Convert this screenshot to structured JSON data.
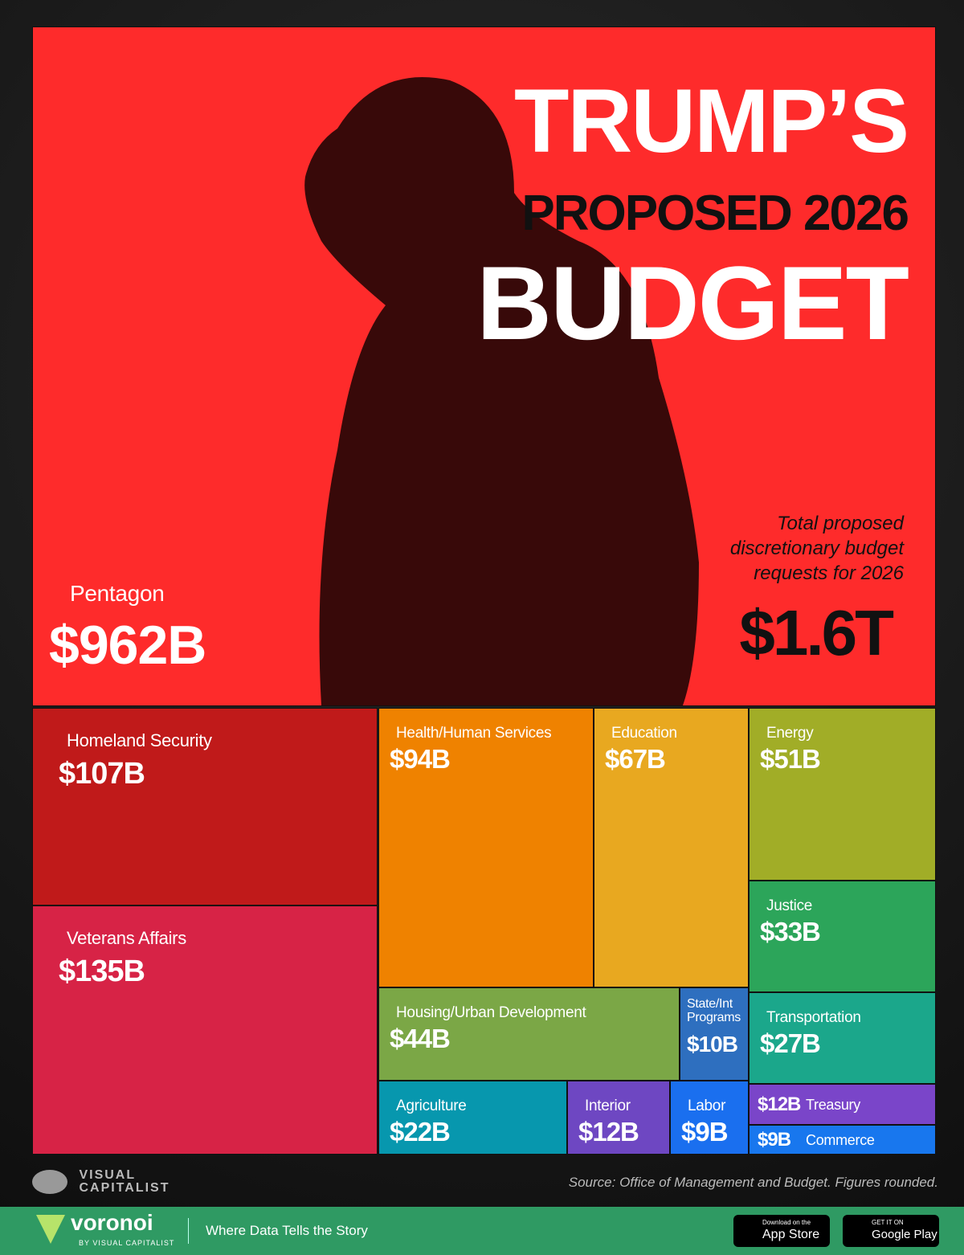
{
  "chart_data": {
    "type": "treemap",
    "title": [
      "TRUMP’S",
      "PROPOSED 2026",
      "BUDGET"
    ],
    "total_note": "Total proposed discretionary budget requests for 2026",
    "total_text": "$1.6T",
    "categories": [
      "Pentagon",
      "Homeland Security",
      "Veterans Affairs",
      "Health/Human Services",
      "Education",
      "Energy",
      "Justice",
      "Transportation",
      "Housing/Urban Development",
      "State/Int Programs",
      "Agriculture",
      "Interior",
      "Labor",
      "Treasury",
      "Commerce"
    ],
    "values": [
      962,
      107,
      135,
      94,
      67,
      51,
      33,
      27,
      44,
      10,
      22,
      12,
      9,
      12,
      9
    ],
    "value_labels": [
      "$962B",
      "$107B",
      "$135B",
      "$94B",
      "$67B",
      "$51B",
      "$33B",
      "$27B",
      "$44B",
      "$10B",
      "$22B",
      "$12B",
      "$9B",
      "$12B",
      "$9B"
    ],
    "colors": [
      "#fe2b2b",
      "#c01a1a",
      "#d72346",
      "#ef8200",
      "#e8a820",
      "#a1ad27",
      "#2ca55a",
      "#1ba78b",
      "#7ba746",
      "#2e6fbf",
      "#0797ae",
      "#6e47c2",
      "#1a6fef",
      "#7a45c9",
      "#1877ee"
    ]
  },
  "source": "Source: Office of Management and Budget. Figures rounded.",
  "brand": {
    "top": "VISUAL",
    "bottom": "CAPITALIST"
  },
  "footer": {
    "logo": "voronoi",
    "logo_sub": "BY VISUAL CAPITALIST",
    "tagline": "Where Data Tells the Story",
    "app_store_small": "Download on the",
    "app_store": "App Store",
    "google_small": "GET IT ON",
    "google": "Google Play"
  }
}
